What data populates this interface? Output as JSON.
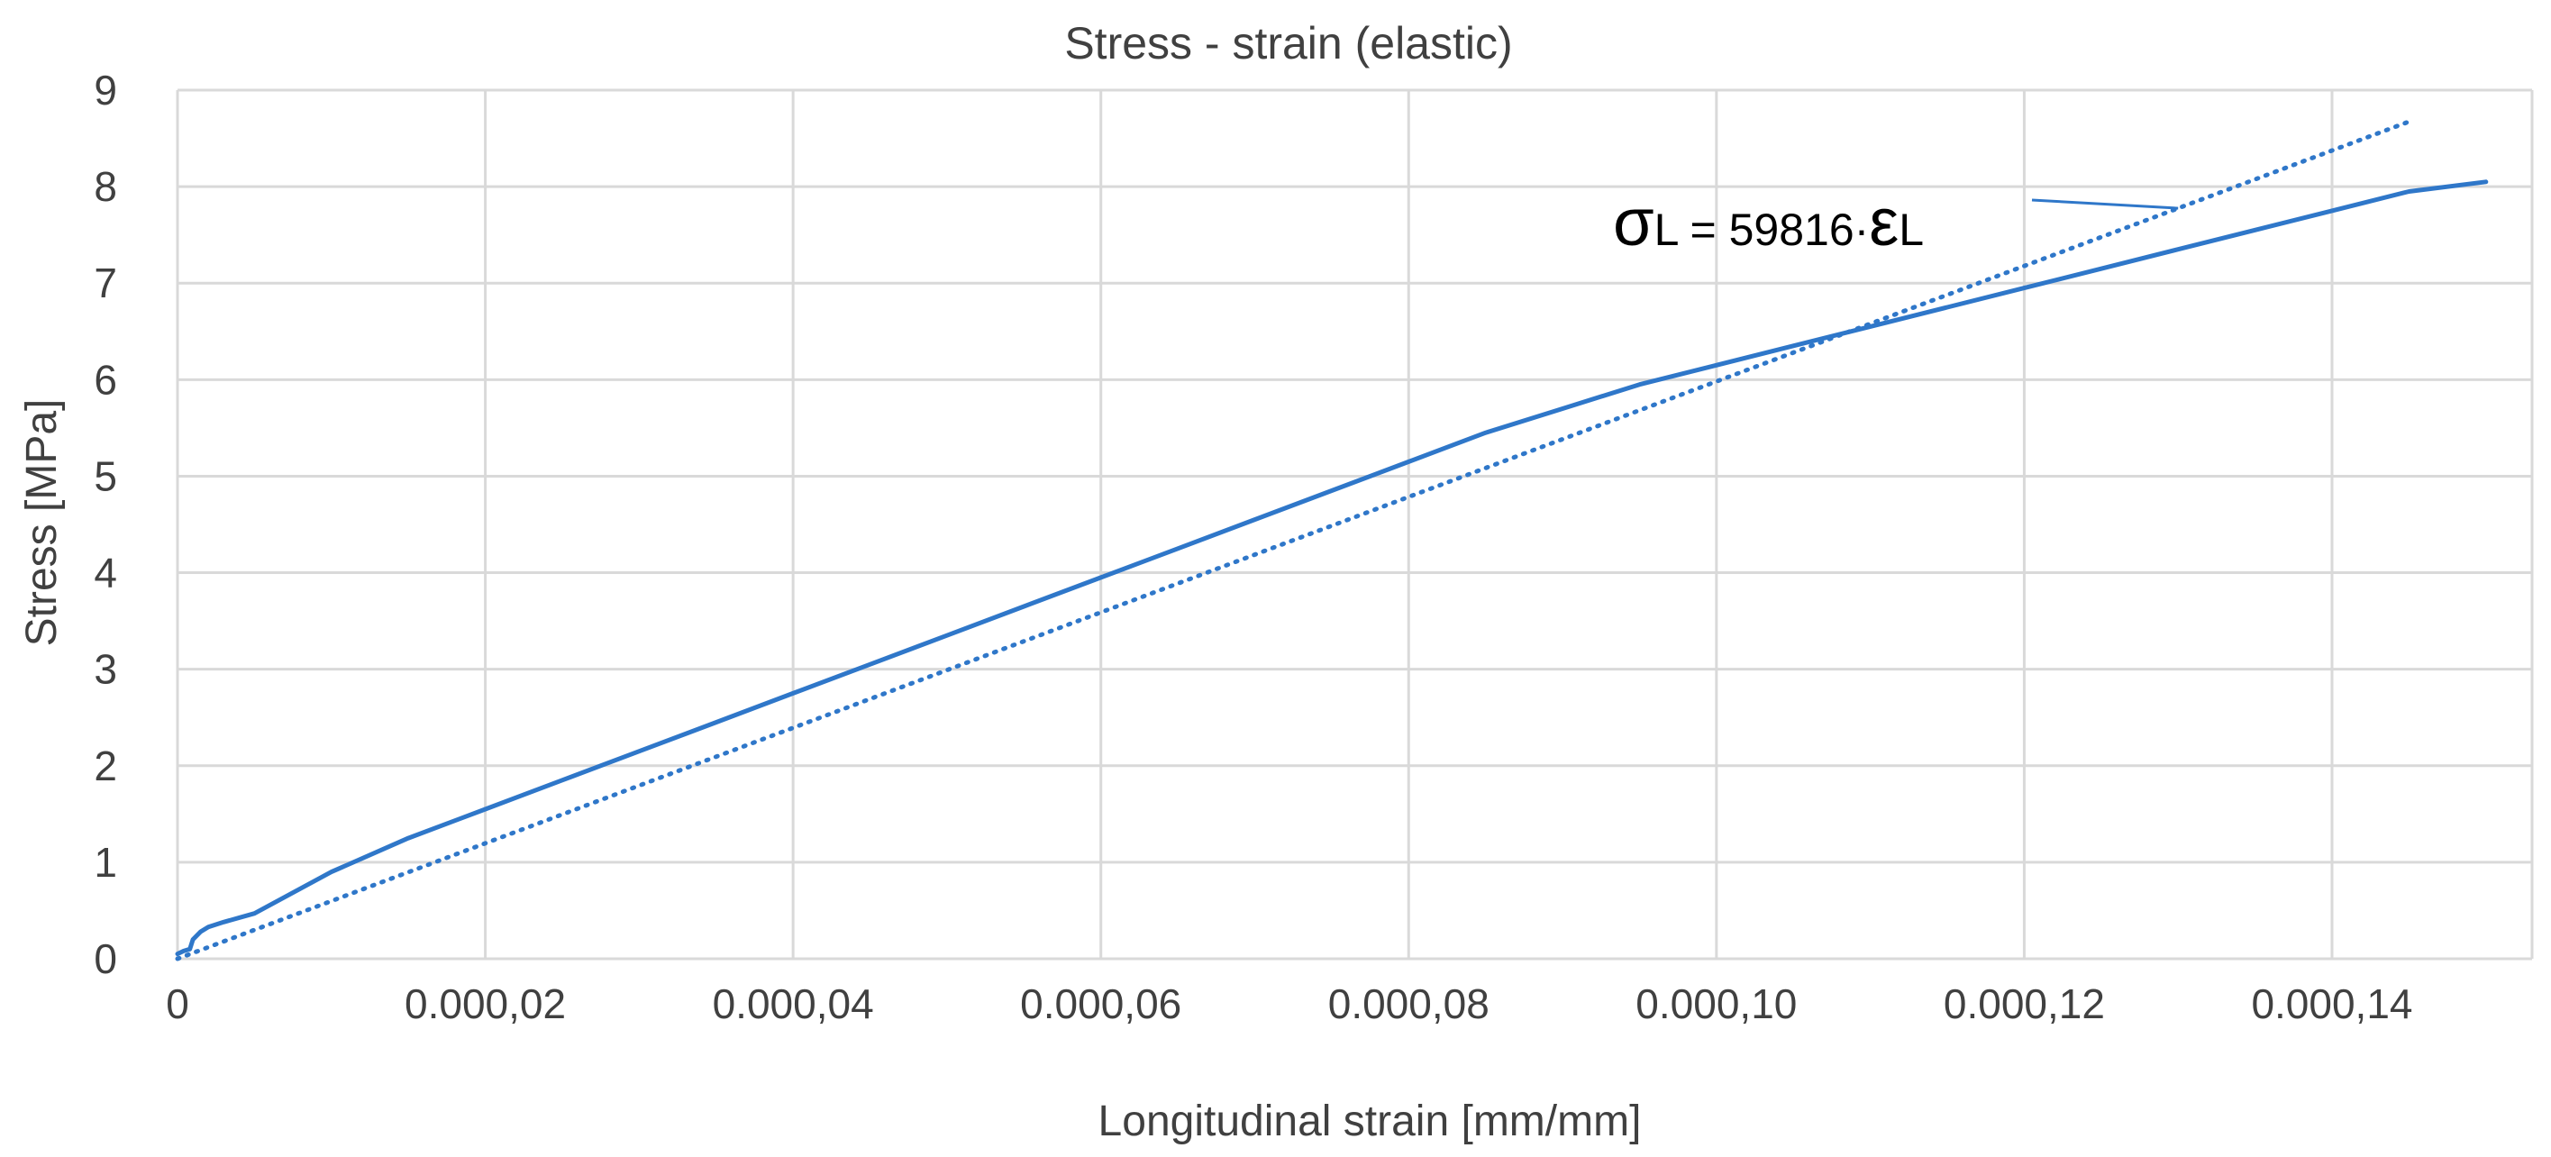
{
  "chart_data": {
    "type": "line",
    "title": "Stress - strain (elastic)",
    "xlabel": "Longitudinal strain [mm/mm]",
    "ylabel": "Stress [MPa]",
    "xlim": [
      0,
      0.000153
    ],
    "ylim": [
      0,
      9
    ],
    "grid": true,
    "colors": {
      "series": "#2f77c9",
      "trend": "#2f77c9",
      "grid": "#d9d9d9",
      "text": "#404040"
    },
    "x_ticks": [
      {
        "value": 0,
        "label": "0"
      },
      {
        "value": 2e-05,
        "label": "0.000,02"
      },
      {
        "value": 4e-05,
        "label": "0.000,04"
      },
      {
        "value": 6e-05,
        "label": "0.000,06"
      },
      {
        "value": 8e-05,
        "label": "0.000,08"
      },
      {
        "value": 0.0001,
        "label": "0.000,10"
      },
      {
        "value": 0.00012,
        "label": "0.000,12"
      },
      {
        "value": 0.00014,
        "label": "0.000,14"
      }
    ],
    "y_ticks": [
      {
        "value": 0,
        "label": "0"
      },
      {
        "value": 1,
        "label": "1"
      },
      {
        "value": 2,
        "label": "2"
      },
      {
        "value": 3,
        "label": "3"
      },
      {
        "value": 4,
        "label": "4"
      },
      {
        "value": 5,
        "label": "5"
      },
      {
        "value": 6,
        "label": "6"
      },
      {
        "value": 7,
        "label": "7"
      },
      {
        "value": 8,
        "label": "8"
      },
      {
        "value": 9,
        "label": "9"
      }
    ],
    "series": [
      {
        "style": "solid",
        "x": [
          0,
          4e-07,
          8e-07,
          1e-06,
          1.5e-06,
          2e-06,
          3e-06,
          5e-06,
          1e-05,
          1.5e-05,
          2e-05,
          2.5e-05,
          3e-05,
          3.5e-05,
          4e-05,
          4.5e-05,
          5e-05,
          5.5e-05,
          6e-05,
          6.5e-05,
          7e-05,
          7.5e-05,
          8e-05,
          8.5e-05,
          9e-05,
          9.5e-05,
          0.0001,
          0.000105,
          0.00011,
          0.000115,
          0.00012,
          0.000125,
          0.00013,
          0.000135,
          0.00014,
          0.000145,
          0.00015
        ],
        "y": [
          0.05,
          0.08,
          0.1,
          0.2,
          0.28,
          0.33,
          0.38,
          0.47,
          0.9,
          1.25,
          1.55,
          1.85,
          2.15,
          2.45,
          2.75,
          3.05,
          3.35,
          3.65,
          3.95,
          4.25,
          4.55,
          4.85,
          5.15,
          5.45,
          5.7,
          5.95,
          6.15,
          6.35,
          6.55,
          6.75,
          6.95,
          7.15,
          7.35,
          7.55,
          7.75,
          7.95,
          8.05
        ]
      },
      {
        "style": "dotted",
        "x": [
          0,
          0.000145
        ],
        "y": [
          0,
          8.673
        ]
      }
    ],
    "annotation": {
      "sigma": "σ",
      "sub1": "L",
      "middle": " = 59816·",
      "epsilon": "ε",
      "sub2": "L",
      "points_to_x": 0.00013,
      "points_to_y": 7.776
    }
  }
}
